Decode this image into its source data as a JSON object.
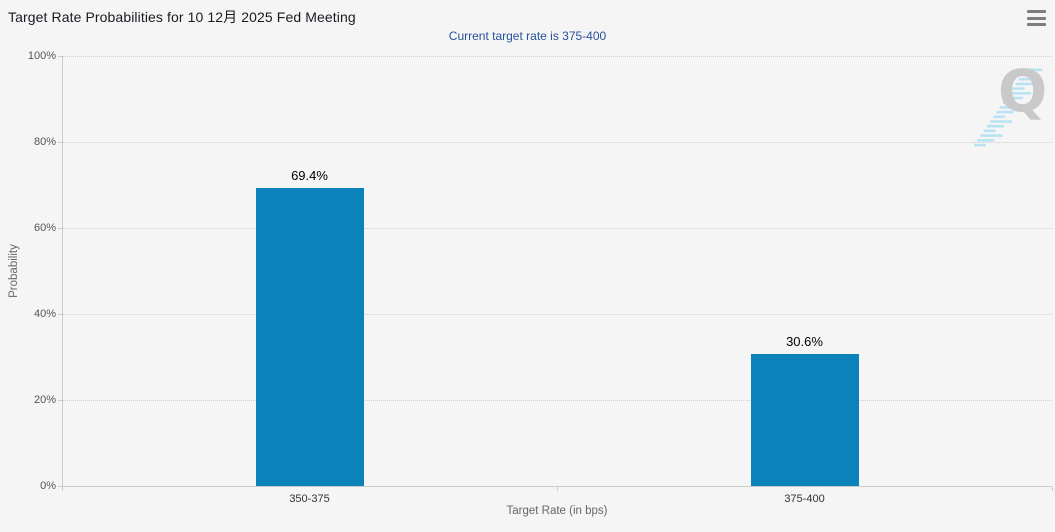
{
  "header": {
    "title": "Target Rate Probabilities for 10 12月 2025 Fed Meeting",
    "subtitle": "Current target rate is 375-400",
    "menu_icon": "hamburger-icon"
  },
  "chart_data": {
    "type": "bar",
    "title": "Target Rate Probabilities for 10 12月 2025 Fed Meeting",
    "subtitle": "Current target rate is 375-400",
    "categories": [
      "350-375",
      "375-400"
    ],
    "values": [
      69.4,
      30.6
    ],
    "data_labels": [
      "69.4%",
      "30.6%"
    ],
    "xlabel": "Target Rate (in bps)",
    "ylabel": "Probability",
    "ylim": [
      0,
      100
    ],
    "ytick_labels": [
      "100%",
      "80%",
      "60%",
      "40%",
      "20%",
      "0%"
    ],
    "grid": "horizontal dotted",
    "legend": "none",
    "bar_color": "#0c82ba",
    "watermark_letter": "Q"
  },
  "colors": {
    "background": "#f5f5f5",
    "title_text": "#1a1a22",
    "subtitle_text": "#27529b",
    "bar": "#0c82ba",
    "axis_line": "#cccccc",
    "gridline": "#cfcfcf",
    "tick_text": "#555555",
    "axis_title_text": "#666666",
    "watermark_gray": "#c9c9c9",
    "watermark_blue": "#b9e3f3",
    "menu_icon": "#7d7d7d"
  }
}
